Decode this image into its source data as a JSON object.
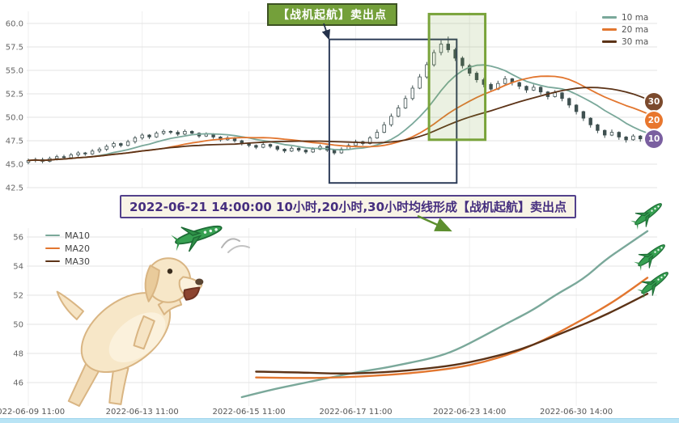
{
  "annotations": {
    "sell_point_label": "【战机起航】卖出点",
    "description_banner": "2022-06-21 14:00:00 10小时,20小时,30小时均线形成【战机起航】卖出点"
  },
  "colors": {
    "ma10": "#7aa89a",
    "ma20": "#e2762f",
    "ma30": "#5c3317",
    "candle": "#3f5050",
    "grid": "#e3e3e3",
    "tick_text": "#666666",
    "selection_box": "#2e3d59",
    "sell_zone": "#79a33a",
    "sell_label_bg": "#74a03a",
    "sell_label_border": "#3c5222",
    "banner_bg": "#f8f4e6",
    "banner_border": "#53418c",
    "banner_text": "#452e7f",
    "badge10": "#7a5fa0",
    "badge20": "#e8772e",
    "badge30": "#7b4a2d",
    "scroll_strip": "#b9e4f5",
    "arrow_dark": "#25324b",
    "arrow_green": "#5d8f2f"
  },
  "chart_data": [
    {
      "type": "candlestick",
      "title": "",
      "xlabel": "",
      "ylabel": "",
      "ylim": [
        42.5,
        60.8
      ],
      "grid": true,
      "legend_position": "top-right",
      "legend": [
        {
          "label": "10 ma",
          "color": "#7aa89a"
        },
        {
          "label": "20 ma",
          "color": "#e2762f"
        },
        {
          "label": "30 ma",
          "color": "#5c3317"
        }
      ],
      "ma_windows": [
        10,
        20,
        30
      ],
      "y_ticks": [
        42.5,
        45.0,
        47.5,
        50.0,
        52.5,
        55.0,
        57.5,
        60.0
      ],
      "x_ticks": {
        "indices": [
          0,
          16,
          31,
          46,
          62,
          77
        ],
        "labels_visible": false
      },
      "badges": [
        {
          "label": "30",
          "color": "#7b4a2d"
        },
        {
          "label": "20",
          "color": "#e8772e"
        },
        {
          "label": "10",
          "color": "#7a5fa0"
        }
      ],
      "highlight_boxes": [
        {
          "name": "selection-box",
          "x1": 42.3,
          "x2": 60.2,
          "v1": 43.0,
          "v2": 58.3,
          "stroke": "#2e3d59",
          "width": 2,
          "fill": "none"
        },
        {
          "name": "sell-zone-box",
          "x1": 56.3,
          "x2": 64.2,
          "v1": 47.6,
          "v2": 61.0,
          "stroke": "#79a33a",
          "width": 3,
          "fill": "rgba(121,163,58,0.15)"
        }
      ],
      "candles_ohlc": [
        [
          45.2,
          45.6,
          45.0,
          45.4
        ],
        [
          45.4,
          45.7,
          45.2,
          45.5
        ],
        [
          45.5,
          45.7,
          45.1,
          45.3
        ],
        [
          45.3,
          45.8,
          45.2,
          45.6
        ],
        [
          45.6,
          46.0,
          45.4,
          45.8
        ],
        [
          45.8,
          46.0,
          45.5,
          45.7
        ],
        [
          45.7,
          46.2,
          45.6,
          46.0
        ],
        [
          46.0,
          46.4,
          45.8,
          46.2
        ],
        [
          46.2,
          46.3,
          45.9,
          46.1
        ],
        [
          46.1,
          46.6,
          46.0,
          46.4
        ],
        [
          46.4,
          46.8,
          46.2,
          46.6
        ],
        [
          46.6,
          47.1,
          46.4,
          46.9
        ],
        [
          46.9,
          47.4,
          46.7,
          47.2
        ],
        [
          47.2,
          47.3,
          46.8,
          47.0
        ],
        [
          47.0,
          47.6,
          46.9,
          47.4
        ],
        [
          47.4,
          48.0,
          47.2,
          47.8
        ],
        [
          47.8,
          48.3,
          47.6,
          48.1
        ],
        [
          48.1,
          48.2,
          47.7,
          47.9
        ],
        [
          47.9,
          48.5,
          47.8,
          48.3
        ],
        [
          48.3,
          48.7,
          48.1,
          48.5
        ],
        [
          48.5,
          48.6,
          48.2,
          48.4
        ],
        [
          48.4,
          48.6,
          48.0,
          48.2
        ],
        [
          48.2,
          48.7,
          48.1,
          48.5
        ],
        [
          48.5,
          48.6,
          48.1,
          48.3
        ],
        [
          48.3,
          48.4,
          47.8,
          48.0
        ],
        [
          48.0,
          48.4,
          47.9,
          48.2
        ],
        [
          48.2,
          48.3,
          47.7,
          47.9
        ],
        [
          47.9,
          48.0,
          47.4,
          47.6
        ],
        [
          47.6,
          48.0,
          47.5,
          47.8
        ],
        [
          47.8,
          47.9,
          47.3,
          47.5
        ],
        [
          47.5,
          47.6,
          47.0,
          47.2
        ],
        [
          47.2,
          47.3,
          46.8,
          47.0
        ],
        [
          47.0,
          47.1,
          46.6,
          46.8
        ],
        [
          46.8,
          47.3,
          46.7,
          47.1
        ],
        [
          47.1,
          47.2,
          46.7,
          46.9
        ],
        [
          46.9,
          47.0,
          46.4,
          46.6
        ],
        [
          46.6,
          46.7,
          46.2,
          46.4
        ],
        [
          46.4,
          46.9,
          46.3,
          46.7
        ],
        [
          46.7,
          46.8,
          46.3,
          46.5
        ],
        [
          46.5,
          46.6,
          46.1,
          46.3
        ],
        [
          46.3,
          46.8,
          46.2,
          46.6
        ],
        [
          46.6,
          47.1,
          46.5,
          46.9
        ],
        [
          46.9,
          47.0,
          46.3,
          46.5
        ],
        [
          46.5,
          46.6,
          46.0,
          46.2
        ],
        [
          46.2,
          46.8,
          46.1,
          46.6
        ],
        [
          46.6,
          47.2,
          46.5,
          47.0
        ],
        [
          47.0,
          47.6,
          46.9,
          47.4
        ],
        [
          47.4,
          47.5,
          47.0,
          47.2
        ],
        [
          47.2,
          48.0,
          47.1,
          47.8
        ],
        [
          47.8,
          48.7,
          47.7,
          48.4
        ],
        [
          48.4,
          49.5,
          48.3,
          49.2
        ],
        [
          49.2,
          50.4,
          49.0,
          50.1
        ],
        [
          50.1,
          51.3,
          50.0,
          51.0
        ],
        [
          51.0,
          52.3,
          50.9,
          52.0
        ],
        [
          52.0,
          53.4,
          51.8,
          53.1
        ],
        [
          53.1,
          54.6,
          53.0,
          54.3
        ],
        [
          54.3,
          55.9,
          54.1,
          55.6
        ],
        [
          55.6,
          57.2,
          55.4,
          56.9
        ],
        [
          56.9,
          58.2,
          56.6,
          57.8
        ],
        [
          57.8,
          58.6,
          56.9,
          57.2
        ],
        [
          57.2,
          57.4,
          56.0,
          56.3
        ],
        [
          56.3,
          56.5,
          55.2,
          55.5
        ],
        [
          55.5,
          55.7,
          54.4,
          54.7
        ],
        [
          54.7,
          54.9,
          53.7,
          54.0
        ],
        [
          54.0,
          54.2,
          53.2,
          53.5
        ],
        [
          53.5,
          53.7,
          52.8,
          53.0
        ],
        [
          53.0,
          53.9,
          52.9,
          53.6
        ],
        [
          53.6,
          54.4,
          53.5,
          54.1
        ],
        [
          54.1,
          54.2,
          53.4,
          53.7
        ],
        [
          53.7,
          53.8,
          53.0,
          53.3
        ],
        [
          53.3,
          53.4,
          52.6,
          52.9
        ],
        [
          52.9,
          53.5,
          52.8,
          53.2
        ],
        [
          53.2,
          53.3,
          52.4,
          52.7
        ],
        [
          52.7,
          52.8,
          51.9,
          52.2
        ],
        [
          52.2,
          52.9,
          52.1,
          52.6
        ],
        [
          52.6,
          52.7,
          51.7,
          52.0
        ],
        [
          52.0,
          52.1,
          51.0,
          51.3
        ],
        [
          51.3,
          51.4,
          50.3,
          50.6
        ],
        [
          50.6,
          50.7,
          49.6,
          49.9
        ],
        [
          49.9,
          50.0,
          48.9,
          49.2
        ],
        [
          49.2,
          49.3,
          48.3,
          48.6
        ],
        [
          48.6,
          48.7,
          47.8,
          48.1
        ],
        [
          48.1,
          48.7,
          48.0,
          48.4
        ],
        [
          48.4,
          48.5,
          47.6,
          47.9
        ],
        [
          47.9,
          48.0,
          47.3,
          47.6
        ],
        [
          47.6,
          48.2,
          47.5,
          48.0
        ],
        [
          48.0,
          48.1,
          47.4,
          47.7
        ],
        [
          47.7,
          48.1,
          47.3,
          47.8
        ]
      ]
    },
    {
      "type": "line",
      "title": "",
      "xlabel": "",
      "ylabel": "",
      "ylim": [
        44.4,
        57.0
      ],
      "grid": true,
      "legend_position": "top-left",
      "legend": [
        {
          "label": "MA10",
          "color": "#7aa89a"
        },
        {
          "label": "MA20",
          "color": "#e2762f"
        },
        {
          "label": "MA30",
          "color": "#5c3317"
        }
      ],
      "y_ticks": [
        46,
        48,
        50,
        52,
        54,
        56
      ],
      "x_ticks": {
        "indices": [
          0,
          16,
          31,
          46,
          62,
          77
        ],
        "labels": [
          "2022-06-09 11:00",
          "2022-06-13 11:00",
          "2022-06-15 11:00",
          "2022-06-17 11:00",
          "2022-06-23 14:00",
          "2022-06-30 14:00"
        ],
        "labels_visible": true
      },
      "series": [
        {
          "name": "MA10",
          "color": "#7aa89a",
          "points": [
            [
              30,
              45.0
            ],
            [
              34,
              45.5
            ],
            [
              38,
              45.9
            ],
            [
              42,
              46.3
            ],
            [
              46,
              46.7
            ],
            [
              50,
              47.0
            ],
            [
              53,
              47.3
            ],
            [
              57,
              47.7
            ],
            [
              60,
              48.2
            ],
            [
              64,
              49.2
            ],
            [
              67,
              50.0
            ],
            [
              71,
              51.0
            ],
            [
              74,
              52.0
            ],
            [
              78,
              53.1
            ],
            [
              81,
              54.4
            ],
            [
              84,
              55.4
            ],
            [
              87,
              56.4
            ]
          ]
        },
        {
          "name": "MA20",
          "color": "#e2762f",
          "points": [
            [
              32,
              46.35
            ],
            [
              38,
              46.3
            ],
            [
              44,
              46.35
            ],
            [
              50,
              46.5
            ],
            [
              55,
              46.7
            ],
            [
              60,
              47.0
            ],
            [
              64,
              47.4
            ],
            [
              68,
              48.0
            ],
            [
              71,
              48.6
            ],
            [
              74,
              49.3
            ],
            [
              77,
              50.1
            ],
            [
              80,
              50.9
            ],
            [
              83,
              51.8
            ],
            [
              87,
              53.2
            ]
          ]
        },
        {
          "name": "MA30",
          "color": "#5c3317",
          "points": [
            [
              32,
              46.75
            ],
            [
              38,
              46.7
            ],
            [
              44,
              46.6
            ],
            [
              50,
              46.7
            ],
            [
              55,
              46.9
            ],
            [
              60,
              47.2
            ],
            [
              64,
              47.6
            ],
            [
              68,
              48.1
            ],
            [
              71,
              48.6
            ],
            [
              74,
              49.2
            ],
            [
              77,
              49.8
            ],
            [
              80,
              50.4
            ],
            [
              83,
              51.1
            ],
            [
              87,
              52.1
            ]
          ]
        }
      ]
    }
  ]
}
